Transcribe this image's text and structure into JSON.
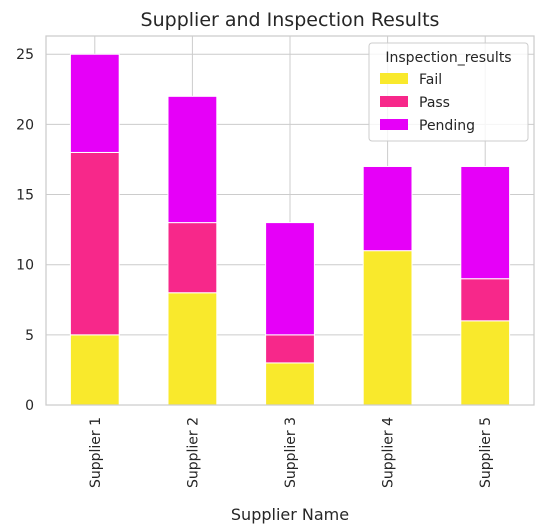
{
  "chart_data": {
    "type": "bar",
    "stacked": true,
    "title": "Supplier and Inspection Results",
    "xlabel": "Supplier Name",
    "ylabel": "",
    "categories": [
      "Supplier 1",
      "Supplier 2",
      "Supplier 3",
      "Supplier 4",
      "Supplier 5"
    ],
    "series": [
      {
        "name": "Fail",
        "values": [
          5,
          8,
          3,
          11,
          6
        ],
        "color": "#f9e92c"
      },
      {
        "name": "Pass",
        "values": [
          13,
          5,
          2,
          0,
          3
        ],
        "color": "#f7288a"
      },
      {
        "name": "Pending",
        "values": [
          7,
          9,
          8,
          6,
          8
        ],
        "color": "#e600f8"
      }
    ],
    "ylim": [
      0,
      26.3
    ],
    "yticks": [
      0,
      5,
      10,
      15,
      20,
      25
    ],
    "grid": true,
    "legend": {
      "title": "Inspection_results",
      "placement": "top-right"
    }
  }
}
